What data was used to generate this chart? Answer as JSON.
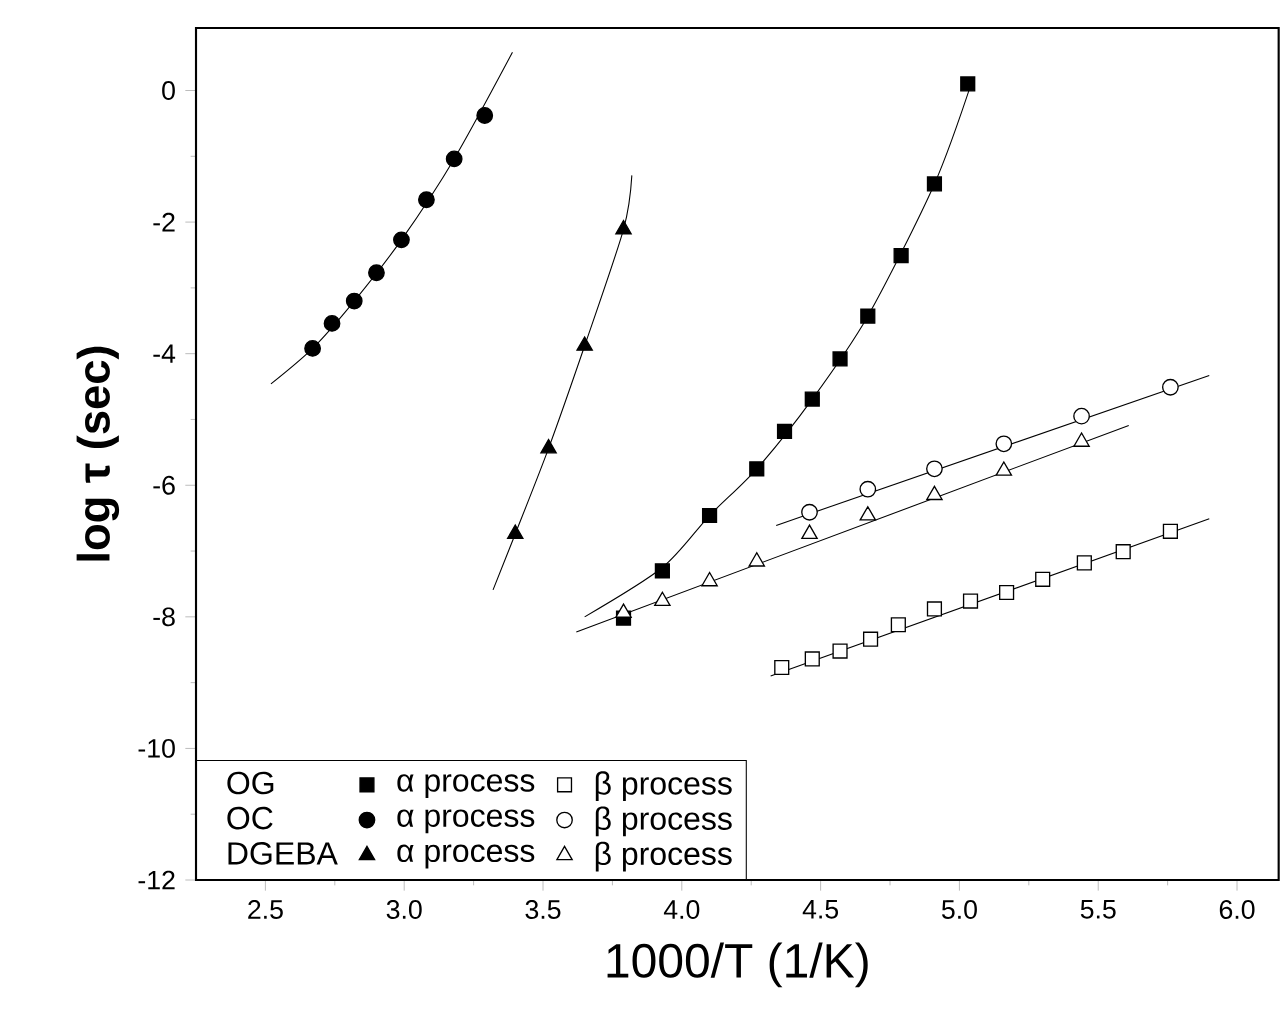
{
  "chart_data": {
    "type": "scatter",
    "xlabel": "1000/T  (1/K)",
    "ylabel": "log τ  (sec)",
    "xlim": [
      2.25,
      6.15
    ],
    "ylim": [
      -12,
      0.95
    ],
    "xticks": [
      {
        "value": 2.5,
        "label": "2.5"
      },
      {
        "value": 3.0,
        "label": "3.0"
      },
      {
        "value": 3.5,
        "label": "3.5"
      },
      {
        "value": 4.0,
        "label": "4.0"
      },
      {
        "value": 4.5,
        "label": "4.5"
      },
      {
        "value": 5.0,
        "label": "5.0"
      },
      {
        "value": 5.5,
        "label": "5.5"
      },
      {
        "value": 6.0,
        "label": "6.0"
      }
    ],
    "yticks": [
      -12,
      -10,
      -8,
      -6,
      -4,
      -2,
      0
    ],
    "grid": false,
    "legend": "bottom left",
    "annotations": [
      "OG",
      "OC",
      "DGEBA"
    ],
    "series": [
      {
        "name": "α process",
        "color": "#000000",
        "marker": "square",
        "x": [
          3.79,
          3.93,
          4.1,
          4.27,
          4.37,
          4.47,
          4.57,
          4.67,
          4.79,
          4.91,
          5.03
        ],
        "values": [
          -8.02,
          -7.3,
          -6.46,
          -5.75,
          -5.18,
          -4.69,
          -4.08,
          -3.43,
          -2.51,
          -1.42,
          0.1
        ]
      },
      {
        "name": "β process",
        "color": "#ffffff",
        "marker": "square",
        "x": [
          4.36,
          4.47,
          4.57,
          4.68,
          4.78,
          4.91,
          5.04,
          5.17,
          5.3,
          5.45,
          5.59,
          5.76
        ],
        "values": [
          -8.77,
          -8.64,
          -8.52,
          -8.34,
          -8.12,
          -7.88,
          -7.76,
          -7.63,
          -7.43,
          -7.18,
          -7.01,
          -6.7
        ]
      },
      {
        "name": "α process",
        "color": "#000000",
        "marker": "circle",
        "x": [
          2.67,
          2.74,
          2.82,
          2.9,
          2.99,
          3.08,
          3.18,
          3.29
        ],
        "values": [
          -3.92,
          -3.54,
          -3.2,
          -2.77,
          -2.27,
          -1.66,
          -1.04,
          -0.38
        ]
      },
      {
        "name": "β process",
        "color": "#ffffff",
        "marker": "circle",
        "x": [
          4.46,
          4.67,
          4.91,
          5.16,
          5.44,
          5.76
        ],
        "values": [
          -6.41,
          -6.06,
          -5.75,
          -5.37,
          -4.95,
          -4.51
        ]
      },
      {
        "name": "α process",
        "color": "#000000",
        "marker": "triangle",
        "x": [
          3.4,
          3.52,
          3.65,
          3.79
        ],
        "values": [
          -6.74,
          -5.44,
          -3.88,
          -2.11
        ]
      },
      {
        "name": "β process",
        "color": "#ffffff",
        "marker": "triangle",
        "x": [
          3.79,
          3.93,
          4.1,
          4.27,
          4.46,
          4.67,
          4.91,
          5.16,
          5.44
        ],
        "values": [
          -7.94,
          -7.76,
          -7.46,
          -7.16,
          -6.74,
          -6.46,
          -6.15,
          -5.78,
          -5.34
        ]
      },
      {
        "type": "line",
        "color": "#000000",
        "marker": "none",
        "x": [
          3.65,
          3.93,
          4.1,
          4.27,
          4.47,
          4.67,
          4.91,
          5.05
        ],
        "values": [
          -8.0,
          -7.25,
          -6.46,
          -5.75,
          -4.69,
          -3.43,
          -1.42,
          0.2
        ]
      },
      {
        "type": "line",
        "color": "#000000",
        "marker": "none",
        "x": [
          4.32,
          5.9
        ],
        "values": [
          -8.9,
          -6.51
        ]
      },
      {
        "type": "line",
        "color": "#000000",
        "marker": "none",
        "x": [
          2.52,
          2.67,
          2.82,
          2.99,
          3.18,
          3.39
        ],
        "values": [
          -4.46,
          -3.92,
          -3.2,
          -2.27,
          -1.04,
          0.58
        ]
      },
      {
        "type": "line",
        "color": "#000000",
        "marker": "none",
        "x": [
          4.34,
          5.9
        ],
        "values": [
          -6.61,
          -4.33
        ]
      },
      {
        "type": "line",
        "color": "#000000",
        "marker": "none",
        "x": [
          3.32,
          3.4,
          3.52,
          3.65,
          3.79,
          3.82
        ],
        "values": [
          -7.59,
          -6.74,
          -5.44,
          -3.88,
          -2.11,
          -1.29
        ]
      },
      {
        "type": "line",
        "color": "#000000",
        "marker": "none",
        "x": [
          3.62,
          5.61
        ],
        "values": [
          -8.23,
          -5.09
        ]
      }
    ]
  }
}
